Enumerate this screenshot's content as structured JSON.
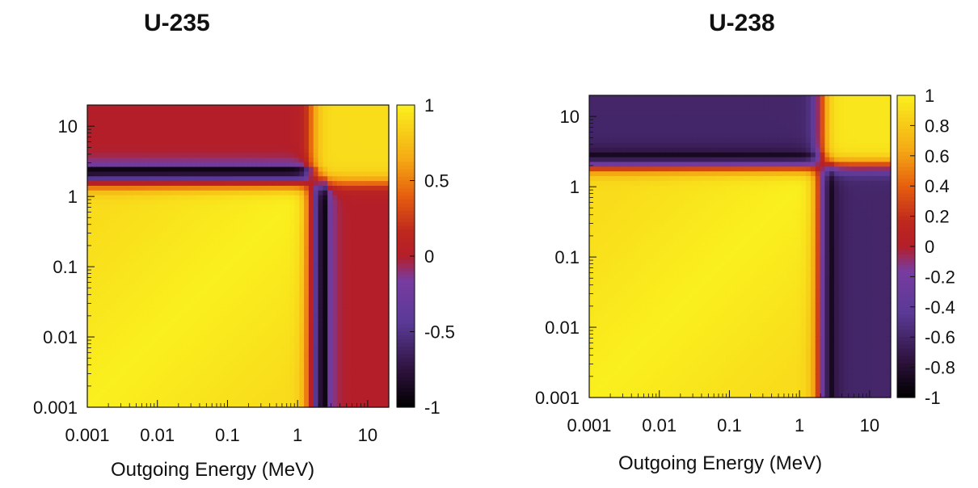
{
  "chart_data": [
    {
      "type": "heatmap",
      "title": "U-235",
      "xlabel": "Outgoing Energy (MeV)",
      "ylabel": "",
      "x_scale": "log",
      "y_scale": "log",
      "xlim": [
        0.001,
        20
      ],
      "ylim": [
        0.001,
        20
      ],
      "x_ticks": [
        "0.001",
        "0.01",
        "0.1",
        "1",
        "10"
      ],
      "y_ticks": [
        "0.001",
        "0.01",
        "0.1",
        "1",
        "10"
      ],
      "colorbar": {
        "range": [
          -1,
          1
        ],
        "ticks": [
          "1",
          "0.5",
          "0",
          "-0.5",
          "-1"
        ],
        "tick_values": [
          1,
          0.5,
          0,
          -0.5,
          -1
        ],
        "colormap": "gnuplot-pm3d-purple-red-yellow"
      },
      "crossover_energy_mev": 1.6,
      "correlation_summary": [
        {
          "region": "both energies below ~1.6 MeV",
          "value": 1
        },
        {
          "region": "both energies above ~1.6 MeV",
          "value": 0.9
        },
        {
          "region": "one energy just below, other just above ~1.6 MeV",
          "value": -1
        },
        {
          "region": "one energy below ~1.6 MeV, other near 10 MeV",
          "value": 0
        }
      ]
    },
    {
      "type": "heatmap",
      "title": "U-238",
      "xlabel": "Outgoing Energy (MeV)",
      "ylabel": "",
      "x_scale": "log",
      "y_scale": "log",
      "xlim": [
        0.001,
        20
      ],
      "ylim": [
        0.001,
        20
      ],
      "x_ticks": [
        "0.001",
        "0.01",
        "0.1",
        "1",
        "10"
      ],
      "y_ticks": [
        "0.001",
        "0.01",
        "0.1",
        "1",
        "10"
      ],
      "colorbar": {
        "range": [
          -1,
          1
        ],
        "ticks": [
          "1",
          "0.8",
          "0.6",
          "0.4",
          "0.2",
          "0",
          "-0.2",
          "-0.4",
          "-0.6",
          "-0.8",
          "-1"
        ],
        "tick_values": [
          1,
          0.8,
          0.6,
          0.4,
          0.2,
          0,
          -0.2,
          -0.4,
          -0.6,
          -0.8,
          -1
        ],
        "colormap": "gnuplot-pm3d-purple-red-yellow"
      },
      "crossover_energy_mev": 2.0,
      "correlation_summary": [
        {
          "region": "both energies below ~2 MeV",
          "value": 1
        },
        {
          "region": "both energies above ~2 MeV",
          "value": 0.95
        },
        {
          "region": "one energy just below, other just above ~2 MeV",
          "value": -1
        },
        {
          "region": "one energy below ~2 MeV, other near 10 MeV",
          "value": -0.6
        }
      ]
    }
  ]
}
